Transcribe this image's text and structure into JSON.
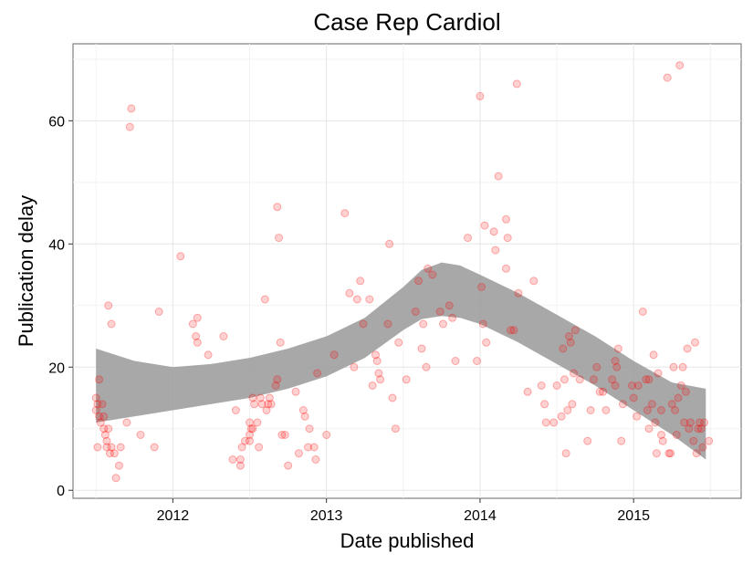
{
  "chart_data": {
    "type": "scatter",
    "title": "Case Rep Cardiol",
    "xlabel": "Date published",
    "ylabel": "Publication delay",
    "xlim": [
      2011.35,
      2015.7
    ],
    "ylim": [
      -1.3,
      72.5
    ],
    "x_ticks": [
      2012,
      2013,
      2014,
      2015
    ],
    "y_ticks": [
      0,
      20,
      40,
      60
    ],
    "grid": true,
    "point_color": "#ff0000",
    "band_color": "#999999",
    "points": [
      [
        2011.5,
        15
      ],
      [
        2011.5,
        13
      ],
      [
        2011.51,
        7
      ],
      [
        2011.51,
        14
      ],
      [
        2011.52,
        18
      ],
      [
        2011.52,
        12
      ],
      [
        2011.53,
        11
      ],
      [
        2011.54,
        14
      ],
      [
        2011.55,
        12
      ],
      [
        2011.55,
        10
      ],
      [
        2011.56,
        9
      ],
      [
        2011.57,
        7
      ],
      [
        2011.57,
        8
      ],
      [
        2011.58,
        30
      ],
      [
        2011.58,
        10
      ],
      [
        2011.59,
        6
      ],
      [
        2011.6,
        27
      ],
      [
        2011.6,
        7
      ],
      [
        2011.62,
        6
      ],
      [
        2011.63,
        2
      ],
      [
        2011.65,
        4
      ],
      [
        2011.66,
        7
      ],
      [
        2011.7,
        11
      ],
      [
        2011.72,
        59
      ],
      [
        2011.73,
        62
      ],
      [
        2011.79,
        9
      ],
      [
        2011.88,
        7
      ],
      [
        2011.91,
        29
      ],
      [
        2012.05,
        38
      ],
      [
        2012.13,
        27
      ],
      [
        2012.15,
        25
      ],
      [
        2012.16,
        24
      ],
      [
        2012.16,
        28
      ],
      [
        2012.23,
        22
      ],
      [
        2012.33,
        25
      ],
      [
        2012.39,
        5
      ],
      [
        2012.41,
        13
      ],
      [
        2012.44,
        5
      ],
      [
        2012.44,
        4
      ],
      [
        2012.45,
        7
      ],
      [
        2012.47,
        8
      ],
      [
        2012.5,
        8
      ],
      [
        2012.5,
        11
      ],
      [
        2012.5,
        9
      ],
      [
        2012.51,
        10
      ],
      [
        2012.52,
        10
      ],
      [
        2012.52,
        15
      ],
      [
        2012.53,
        14
      ],
      [
        2012.55,
        11
      ],
      [
        2012.56,
        7
      ],
      [
        2012.57,
        15
      ],
      [
        2012.58,
        14
      ],
      [
        2012.6,
        31
      ],
      [
        2012.61,
        13
      ],
      [
        2012.62,
        14
      ],
      [
        2012.63,
        15
      ],
      [
        2012.64,
        14
      ],
      [
        2012.67,
        17
      ],
      [
        2012.68,
        46
      ],
      [
        2012.68,
        18
      ],
      [
        2012.69,
        41
      ],
      [
        2012.7,
        24
      ],
      [
        2012.71,
        9
      ],
      [
        2012.73,
        9
      ],
      [
        2012.75,
        4
      ],
      [
        2012.8,
        16
      ],
      [
        2012.82,
        6
      ],
      [
        2012.85,
        13
      ],
      [
        2012.86,
        12
      ],
      [
        2012.88,
        7
      ],
      [
        2012.89,
        10
      ],
      [
        2012.92,
        7
      ],
      [
        2012.93,
        5
      ],
      [
        2012.94,
        19
      ],
      [
        2013.0,
        9
      ],
      [
        2013.05,
        22
      ],
      [
        2013.12,
        45
      ],
      [
        2013.15,
        32
      ],
      [
        2013.18,
        20
      ],
      [
        2013.2,
        31
      ],
      [
        2013.22,
        34
      ],
      [
        2013.24,
        27
      ],
      [
        2013.28,
        31
      ],
      [
        2013.3,
        17
      ],
      [
        2013.32,
        22
      ],
      [
        2013.33,
        21
      ],
      [
        2013.34,
        19
      ],
      [
        2013.35,
        18
      ],
      [
        2013.4,
        27
      ],
      [
        2013.41,
        40
      ],
      [
        2013.43,
        15
      ],
      [
        2013.45,
        10
      ],
      [
        2013.47,
        24
      ],
      [
        2013.52,
        18
      ],
      [
        2013.58,
        29
      ],
      [
        2013.6,
        34
      ],
      [
        2013.62,
        23
      ],
      [
        2013.63,
        27
      ],
      [
        2013.65,
        20
      ],
      [
        2013.66,
        36
      ],
      [
        2013.69,
        35
      ],
      [
        2013.74,
        29
      ],
      [
        2013.76,
        27
      ],
      [
        2013.8,
        30
      ],
      [
        2013.82,
        28
      ],
      [
        2013.84,
        21
      ],
      [
        2013.92,
        41
      ],
      [
        2013.98,
        21
      ],
      [
        2014.0,
        64
      ],
      [
        2014.01,
        33
      ],
      [
        2014.02,
        27
      ],
      [
        2014.03,
        43
      ],
      [
        2014.04,
        24
      ],
      [
        2014.09,
        42
      ],
      [
        2014.1,
        39
      ],
      [
        2014.12,
        51
      ],
      [
        2014.17,
        44
      ],
      [
        2014.17,
        36
      ],
      [
        2014.18,
        41
      ],
      [
        2014.2,
        26
      ],
      [
        2014.22,
        26
      ],
      [
        2014.24,
        66
      ],
      [
        2014.25,
        32
      ],
      [
        2014.31,
        16
      ],
      [
        2014.35,
        34
      ],
      [
        2014.4,
        17
      ],
      [
        2014.42,
        14
      ],
      [
        2014.43,
        11
      ],
      [
        2014.48,
        11
      ],
      [
        2014.5,
        17
      ],
      [
        2014.53,
        12
      ],
      [
        2014.54,
        23
      ],
      [
        2014.55,
        18
      ],
      [
        2014.56,
        6
      ],
      [
        2014.57,
        13
      ],
      [
        2014.58,
        25
      ],
      [
        2014.59,
        24
      ],
      [
        2014.6,
        14
      ],
      [
        2014.61,
        19
      ],
      [
        2014.62,
        26
      ],
      [
        2014.65,
        18
      ],
      [
        2014.7,
        8
      ],
      [
        2014.72,
        13
      ],
      [
        2014.74,
        18
      ],
      [
        2014.76,
        20
      ],
      [
        2014.78,
        16
      ],
      [
        2014.8,
        16
      ],
      [
        2014.82,
        13
      ],
      [
        2014.86,
        18
      ],
      [
        2014.88,
        21
      ],
      [
        2014.88,
        17
      ],
      [
        2014.89,
        20
      ],
      [
        2014.9,
        23
      ],
      [
        2014.92,
        8
      ],
      [
        2014.93,
        14
      ],
      [
        2014.99,
        17
      ],
      [
        2015.0,
        15
      ],
      [
        2015.02,
        12
      ],
      [
        2015.03,
        17
      ],
      [
        2015.06,
        29
      ],
      [
        2015.08,
        18
      ],
      [
        2015.09,
        13
      ],
      [
        2015.1,
        18
      ],
      [
        2015.1,
        10
      ],
      [
        2015.12,
        14
      ],
      [
        2015.13,
        22
      ],
      [
        2015.14,
        11
      ],
      [
        2015.15,
        6
      ],
      [
        2015.16,
        19
      ],
      [
        2015.18,
        13
      ],
      [
        2015.18,
        9
      ],
      [
        2015.19,
        8
      ],
      [
        2015.22,
        67
      ],
      [
        2015.23,
        6
      ],
      [
        2015.24,
        6
      ],
      [
        2015.25,
        14
      ],
      [
        2015.26,
        20
      ],
      [
        2015.27,
        13
      ],
      [
        2015.28,
        9
      ],
      [
        2015.29,
        15
      ],
      [
        2015.3,
        69
      ],
      [
        2015.31,
        17
      ],
      [
        2015.32,
        20
      ],
      [
        2015.33,
        11
      ],
      [
        2015.34,
        16
      ],
      [
        2015.35,
        23
      ],
      [
        2015.36,
        10
      ],
      [
        2015.37,
        11
      ],
      [
        2015.39,
        8
      ],
      [
        2015.4,
        24
      ],
      [
        2015.41,
        6
      ],
      [
        2015.42,
        10
      ],
      [
        2015.43,
        11
      ],
      [
        2015.44,
        10
      ],
      [
        2015.45,
        7
      ],
      [
        2015.46,
        11
      ],
      [
        2015.49,
        8
      ]
    ],
    "smooth_band": {
      "x": [
        2011.5,
        2011.75,
        2012.0,
        2012.25,
        2012.5,
        2012.75,
        2013.0,
        2013.25,
        2013.5,
        2013.62,
        2013.75,
        2013.87,
        2014.0,
        2014.25,
        2014.5,
        2014.75,
        2015.0,
        2015.25,
        2015.47
      ],
      "upper": [
        23,
        21,
        20,
        20.5,
        21.5,
        23,
        25,
        28,
        33,
        35.8,
        37,
        36.5,
        35,
        32,
        28.5,
        25,
        21,
        17.5,
        16.5
      ],
      "lower": [
        11,
        12,
        13,
        14,
        15,
        16.5,
        18.5,
        21.5,
        26,
        27.8,
        28.3,
        28,
        27,
        24,
        20.5,
        17,
        13,
        9,
        5
      ]
    }
  }
}
